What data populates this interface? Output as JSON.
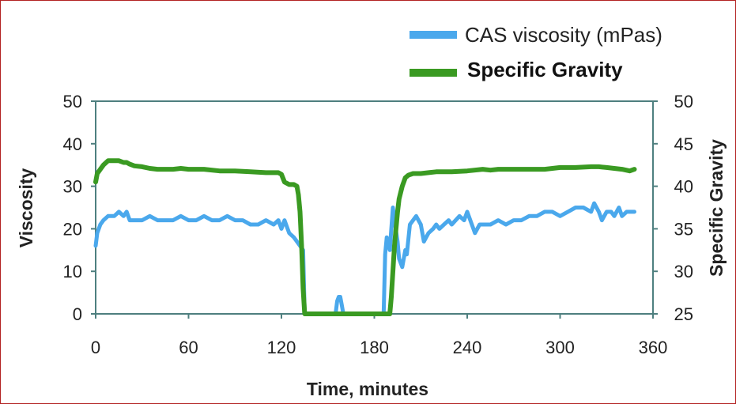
{
  "chart_data": {
    "type": "line",
    "xlabel": "Time, minutes",
    "ylabel_left": "Viscosity",
    "ylabel_right": "Specific Gravity",
    "xlim": [
      0,
      360
    ],
    "ylim_left": [
      0,
      50
    ],
    "ylim_right": [
      25,
      50
    ],
    "x_ticks": [
      "0",
      "60",
      "120",
      "180",
      "240",
      "300",
      "360"
    ],
    "y_ticks_left": [
      "0",
      "10",
      "20",
      "30",
      "40",
      "50"
    ],
    "y_ticks_right": [
      "25",
      "30",
      "35",
      "40",
      "45",
      "50"
    ],
    "grid": false,
    "legend_position": "top-right",
    "series": [
      {
        "name": "CAS viscosity (mPas)",
        "axis": "left",
        "color": "#4aa8ec",
        "x": [
          0,
          1,
          3,
          5,
          8,
          12,
          15,
          18,
          20,
          22,
          25,
          30,
          35,
          40,
          45,
          50,
          55,
          60,
          65,
          70,
          75,
          80,
          85,
          90,
          95,
          100,
          105,
          110,
          115,
          118,
          120,
          122,
          125,
          128,
          130,
          132,
          134,
          135,
          136,
          140,
          150,
          155,
          156,
          157,
          158,
          159,
          160,
          161,
          162,
          170,
          180,
          185,
          186,
          187,
          188,
          189,
          190,
          191,
          192,
          193,
          195,
          196,
          198,
          200,
          201,
          203,
          205,
          207,
          210,
          212,
          215,
          218,
          220,
          222,
          225,
          228,
          230,
          235,
          238,
          240,
          245,
          248,
          250,
          255,
          260,
          265,
          270,
          275,
          280,
          285,
          290,
          295,
          300,
          305,
          310,
          315,
          320,
          322,
          325,
          327,
          330,
          333,
          335,
          338,
          340,
          343,
          345,
          348
        ],
        "y": [
          16,
          19,
          21,
          22,
          23,
          23,
          24,
          23,
          24,
          22,
          22,
          22,
          23,
          22,
          22,
          22,
          23,
          22,
          22,
          23,
          22,
          22,
          23,
          22,
          22,
          21,
          21,
          22,
          21,
          22,
          20,
          22,
          19,
          18,
          17,
          16,
          15,
          0,
          0,
          0,
          0,
          0,
          3,
          4,
          4,
          2,
          0,
          0,
          0,
          0,
          0,
          0,
          0,
          14,
          18,
          17,
          15,
          20,
          25,
          22,
          17,
          13,
          11,
          15,
          14,
          21,
          22,
          23,
          21,
          17,
          19,
          20,
          21,
          20,
          21,
          22,
          21,
          23,
          22,
          24,
          19,
          21,
          21,
          21,
          22,
          21,
          22,
          22,
          23,
          23,
          24,
          24,
          23,
          24,
          25,
          25,
          24,
          26,
          24,
          22,
          24,
          24,
          23,
          25,
          23,
          24,
          24,
          24
        ]
      },
      {
        "name": "Specific Gravity",
        "axis": "right",
        "color": "#3a9a22",
        "x": [
          0,
          1,
          3,
          5,
          8,
          10,
          12,
          15,
          18,
          20,
          22,
          25,
          30,
          35,
          40,
          45,
          50,
          55,
          60,
          70,
          80,
          90,
          100,
          110,
          115,
          118,
          120,
          122,
          125,
          128,
          130,
          131,
          132,
          133,
          134,
          135,
          190,
          191,
          192,
          193,
          194,
          195,
          196,
          198,
          200,
          202,
          205,
          208,
          210,
          215,
          220,
          230,
          240,
          250,
          255,
          260,
          270,
          280,
          290,
          300,
          310,
          320,
          325,
          330,
          340,
          345,
          348
        ],
        "y": [
          40.5,
          41.5,
          42,
          42.5,
          43,
          43,
          43,
          43,
          42.8,
          42.8,
          42.6,
          42.4,
          42.3,
          42.1,
          42,
          42,
          42,
          42.1,
          42,
          42,
          41.8,
          41.8,
          41.7,
          41.6,
          41.6,
          41.6,
          41.4,
          40.5,
          40.2,
          40.2,
          40,
          39,
          37,
          33,
          28,
          25,
          25,
          27,
          30,
          33,
          35,
          37,
          38.5,
          40,
          41,
          41.3,
          41.5,
          41.5,
          41.5,
          41.6,
          41.7,
          41.7,
          41.8,
          42,
          41.9,
          42,
          42,
          42,
          42,
          42.2,
          42.2,
          42.3,
          42.3,
          42.2,
          42,
          41.8,
          42
        ]
      }
    ]
  }
}
